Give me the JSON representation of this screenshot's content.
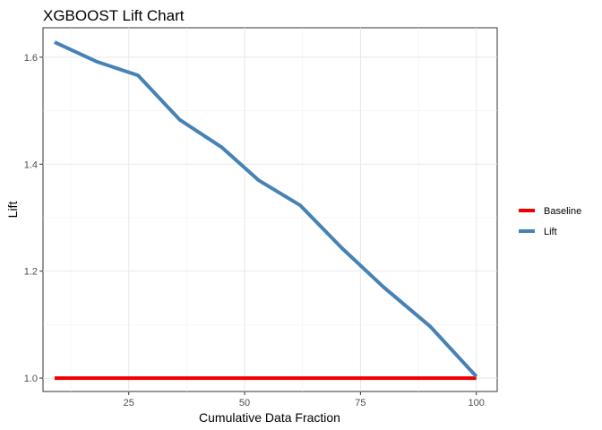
{
  "chart_data": {
    "type": "line",
    "title": "XGBOOST Lift Chart",
    "xlabel": "Cumulative Data Fraction",
    "ylabel": "Lift",
    "xlim": [
      6.5,
      104.5
    ],
    "ylim": [
      0.975,
      1.655
    ],
    "x_ticks": [
      25,
      50,
      75,
      100
    ],
    "x_tick_labels": [
      "25",
      "50",
      "75",
      "100"
    ],
    "y_ticks": [
      1.0,
      1.2,
      1.4,
      1.6
    ],
    "y_tick_labels": [
      "1.0",
      "1.2",
      "1.4",
      "1.6"
    ],
    "grid": true,
    "legend_position": "right",
    "series": [
      {
        "name": "Baseline",
        "color": "#ee0000",
        "x": [
          9,
          100
        ],
        "y": [
          1.0,
          1.0
        ]
      },
      {
        "name": "Lift",
        "color": "#4682b4",
        "x": [
          9,
          18,
          27,
          36,
          45,
          53,
          62,
          71,
          80,
          90,
          100
        ],
        "y": [
          1.628,
          1.592,
          1.566,
          1.483,
          1.432,
          1.37,
          1.323,
          1.243,
          1.17,
          1.097,
          1.003
        ]
      }
    ]
  }
}
